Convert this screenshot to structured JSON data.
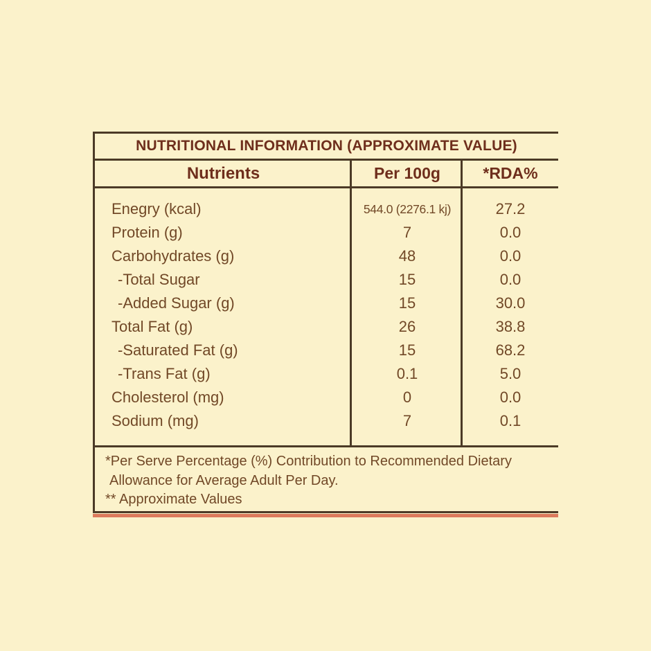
{
  "label_card": {
    "title": "NUTRITIONAL INFORMATION (APPROXIMATE VALUE)",
    "columns": {
      "nutrients": "Nutrients",
      "per_100g": "Per 100g",
      "rda": "*RDA%"
    },
    "rows": [
      {
        "label": "Enegry  (kcal)",
        "per_100g": "544.0 (2276.1 kj)",
        "rda": "27.2"
      },
      {
        "label": "Protein (g)",
        "per_100g": "7",
        "rda": "0.0"
      },
      {
        "label": "Carbohydrates (g)",
        "per_100g": "48",
        "rda": "0.0"
      },
      {
        "label": "-Total Sugar",
        "per_100g": "15",
        "rda": "0.0"
      },
      {
        "label": "-Added Sugar (g)",
        "per_100g": "15",
        "rda": "30.0"
      },
      {
        "label": "Total Fat (g)",
        "per_100g": "26",
        "rda": "38.8"
      },
      {
        "label": "-Saturated Fat (g)",
        "per_100g": "15",
        "rda": "68.2"
      },
      {
        "label": "-Trans Fat (g)",
        "per_100g": "0.1",
        "rda": "5.0"
      },
      {
        "label": "Cholesterol (mg)",
        "per_100g": "0",
        "rda": "0.0"
      },
      {
        "label": "Sodium (mg)",
        "per_100g": "7",
        "rda": "0.1"
      }
    ],
    "footnotes": {
      "line1": "*Per Serve Percentage (%) Contribution to Recommended Dietary",
      "line2": "Allowance for Average Adult Per Day.",
      "line3": "** Approximate Values"
    },
    "colors": {
      "page_background": "#FBF2CB",
      "table_border": "#4B3A26",
      "heading_text": "#6E2E1C",
      "body_text": "#714827",
      "bottom_accent": "#DC7A5C"
    }
  }
}
